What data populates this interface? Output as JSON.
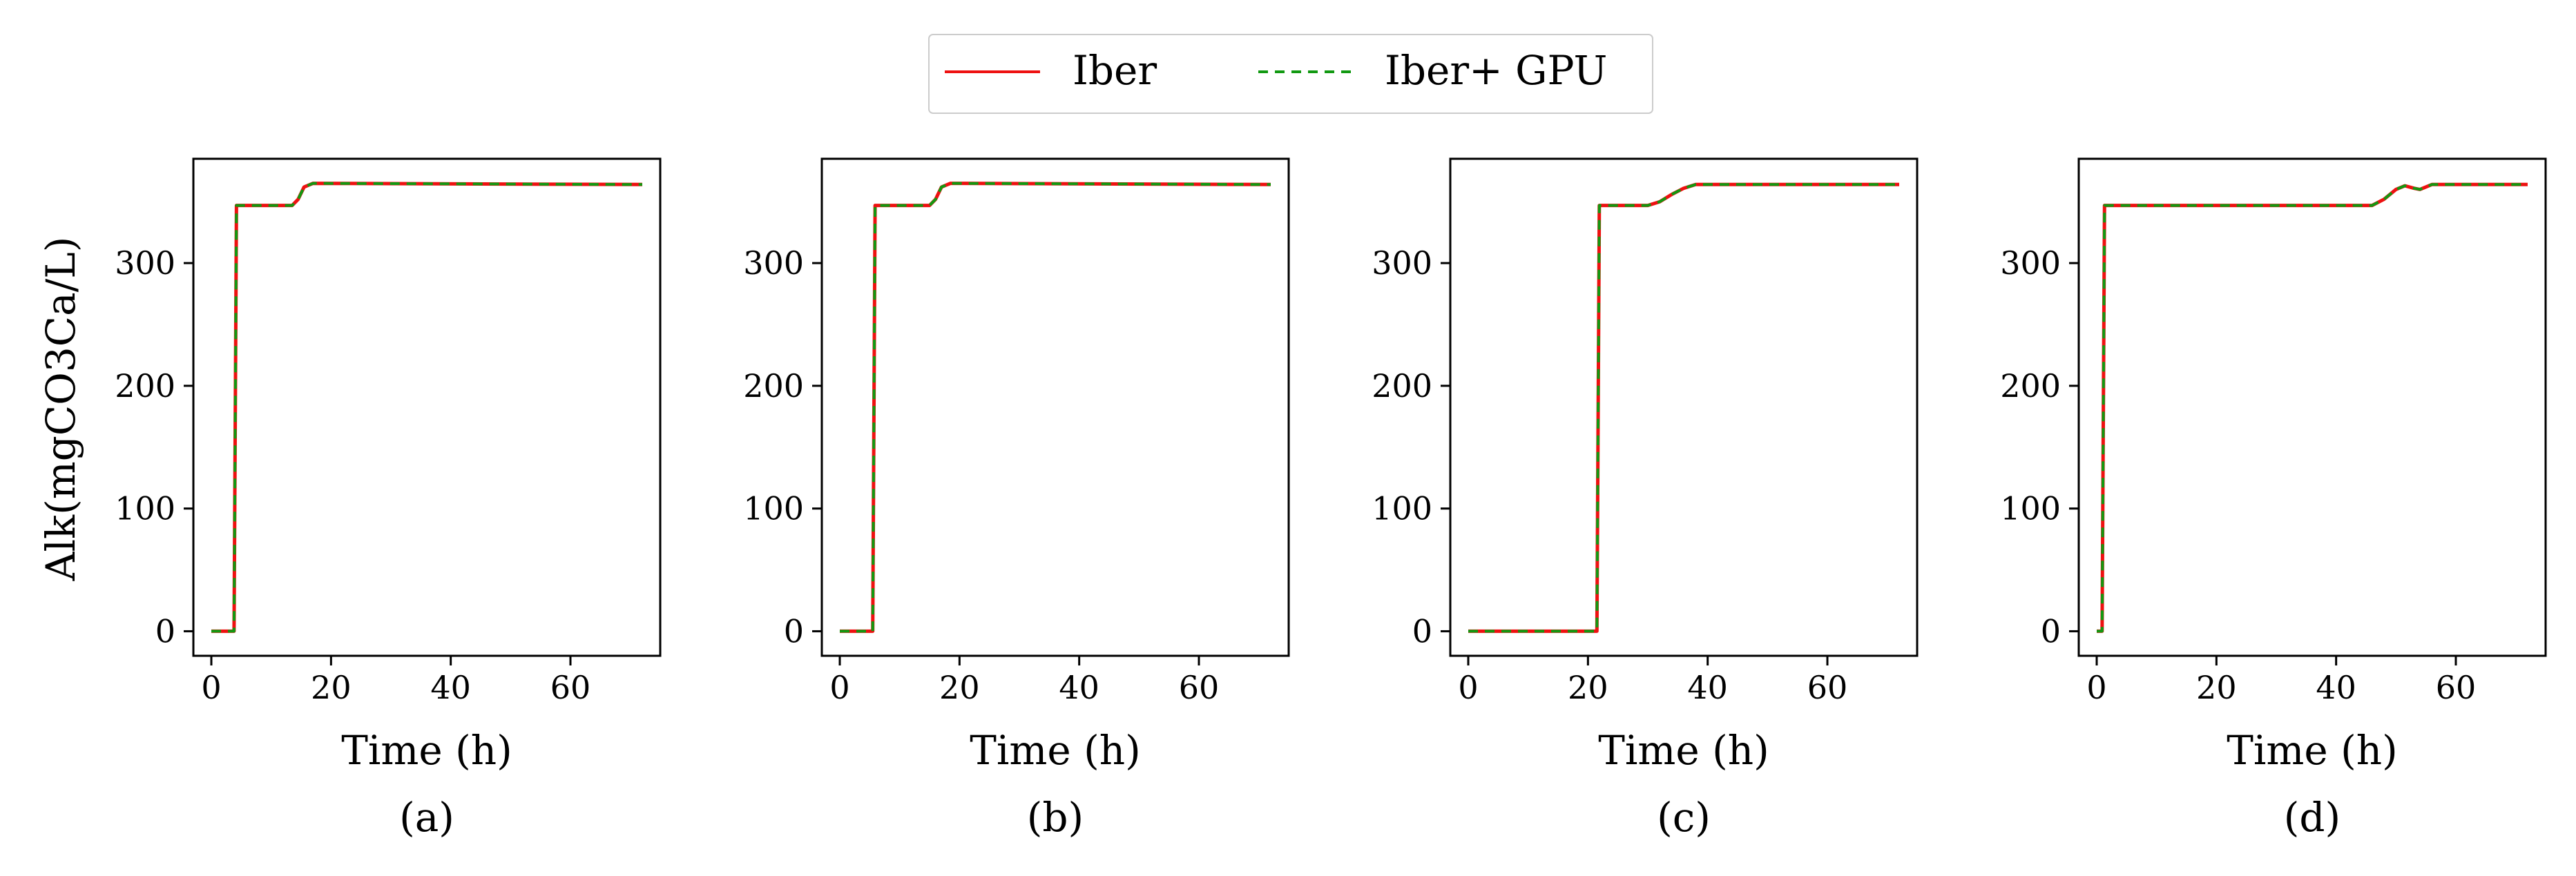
{
  "legend": {
    "entries": [
      {
        "label": "Iber",
        "color": "#ee1111",
        "style": "solid"
      },
      {
        "label": "Iber+ GPU",
        "color": "#119911",
        "style": "dashed"
      }
    ]
  },
  "chart_data": [
    {
      "type": "line",
      "caption": "(a)",
      "xlabel": "Time (h)",
      "ylabel": "Alk(mgCO3Ca/L)",
      "xlim": [
        -3,
        75
      ],
      "ylim": [
        -20,
        385
      ],
      "xticks": [
        "0",
        "20",
        "40",
        "60"
      ],
      "yticks": [
        "0",
        "100",
        "200",
        "300"
      ],
      "series": [
        {
          "name": "Iber",
          "x": [
            0,
            3.8,
            4.2,
            13.5,
            14.5,
            15.5,
            17,
            72
          ],
          "y": [
            0,
            0,
            347,
            347,
            352,
            362,
            365,
            364
          ]
        },
        {
          "name": "Iber+ GPU",
          "x": [
            0,
            3.8,
            4.2,
            13.5,
            14.5,
            15.5,
            17,
            72
          ],
          "y": [
            0,
            0,
            347,
            347,
            352,
            362,
            365,
            364
          ]
        }
      ]
    },
    {
      "type": "line",
      "caption": "(b)",
      "xlabel": "Time (h)",
      "ylabel": "",
      "xlim": [
        -3,
        75
      ],
      "ylim": [
        -20,
        385
      ],
      "xticks": [
        "0",
        "20",
        "40",
        "60"
      ],
      "yticks": [
        "0",
        "100",
        "200",
        "300"
      ],
      "series": [
        {
          "name": "Iber",
          "x": [
            0,
            5.5,
            5.9,
            15,
            16,
            17,
            18.5,
            72
          ],
          "y": [
            0,
            0,
            347,
            347,
            352,
            362,
            365,
            364
          ]
        },
        {
          "name": "Iber+ GPU",
          "x": [
            0,
            5.5,
            5.9,
            15,
            16,
            17,
            18.5,
            72
          ],
          "y": [
            0,
            0,
            347,
            347,
            352,
            362,
            365,
            364
          ]
        }
      ]
    },
    {
      "type": "line",
      "caption": "(c)",
      "xlabel": "Time (h)",
      "ylabel": "",
      "xlim": [
        -3,
        75
      ],
      "ylim": [
        -20,
        385
      ],
      "xticks": [
        "0",
        "20",
        "40",
        "60"
      ],
      "yticks": [
        "0",
        "100",
        "200",
        "300"
      ],
      "series": [
        {
          "name": "Iber",
          "x": [
            0,
            21.5,
            21.9,
            30,
            32,
            34,
            36,
            38,
            72
          ],
          "y": [
            0,
            0,
            347,
            347,
            350,
            356,
            361,
            364,
            364
          ]
        },
        {
          "name": "Iber+ GPU",
          "x": [
            0,
            21.5,
            21.9,
            30,
            32,
            34,
            36,
            38,
            72
          ],
          "y": [
            0,
            0,
            347,
            347,
            350,
            356,
            361,
            364,
            364
          ]
        }
      ]
    },
    {
      "type": "line",
      "caption": "(d)",
      "xlabel": "Time (h)",
      "ylabel": "",
      "xlim": [
        -3,
        75
      ],
      "ylim": [
        -20,
        385
      ],
      "xticks": [
        "0",
        "20",
        "40",
        "60"
      ],
      "yticks": [
        "0",
        "100",
        "200",
        "300"
      ],
      "series": [
        {
          "name": "Iber",
          "x": [
            0,
            0.9,
            1.3,
            46,
            48,
            50,
            51.5,
            53,
            54,
            56,
            72
          ],
          "y": [
            0,
            0,
            347,
            347,
            352,
            360,
            363,
            361,
            360,
            364,
            364
          ]
        },
        {
          "name": "Iber+ GPU",
          "x": [
            0,
            0.9,
            1.3,
            46,
            48,
            50,
            51.5,
            53,
            54,
            56,
            72
          ],
          "y": [
            0,
            0,
            347,
            347,
            352,
            360,
            363,
            361,
            360,
            364,
            364
          ]
        }
      ]
    }
  ]
}
